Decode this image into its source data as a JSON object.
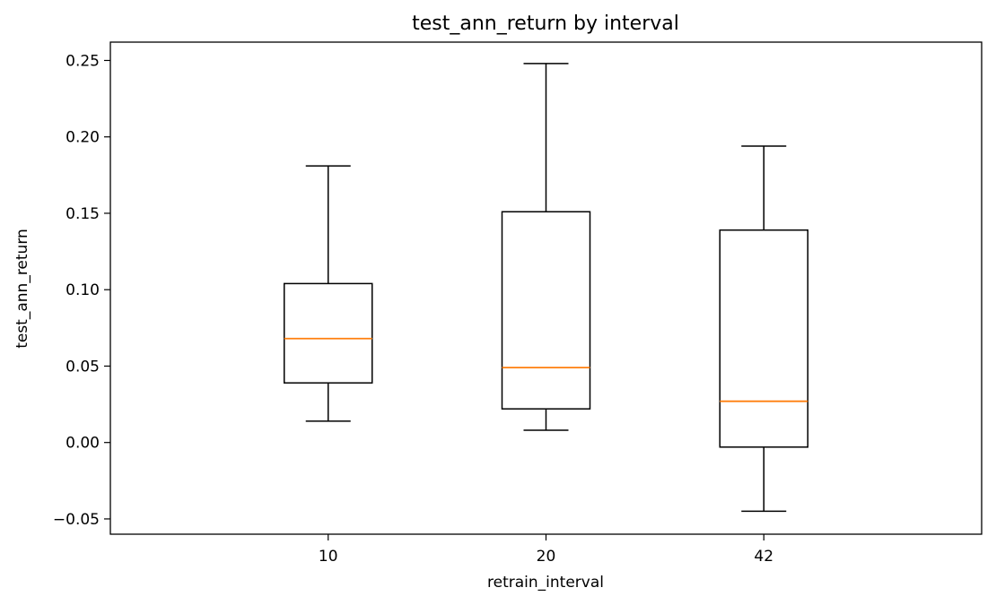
{
  "chart_data": {
    "type": "box",
    "title": "test_ann_return by interval",
    "xlabel": "retrain_interval",
    "ylabel": "test_ann_return",
    "categories": [
      "10",
      "20",
      "42"
    ],
    "boxes": [
      {
        "category": "10",
        "whisker_low": 0.014,
        "q1": 0.039,
        "median": 0.068,
        "q3": 0.104,
        "whisker_high": 0.181
      },
      {
        "category": "20",
        "whisker_low": 0.008,
        "q1": 0.022,
        "median": 0.049,
        "q3": 0.151,
        "whisker_high": 0.248
      },
      {
        "category": "42",
        "whisker_low": -0.045,
        "q1": -0.003,
        "median": 0.027,
        "q3": 0.139,
        "whisker_high": 0.194
      }
    ],
    "y_ticks": [
      "−0.05",
      "0.00",
      "0.05",
      "0.10",
      "0.15",
      "0.20",
      "0.25"
    ],
    "y_tick_values": [
      -0.05,
      0.0,
      0.05,
      0.1,
      0.15,
      0.2,
      0.25
    ],
    "ylim": [
      -0.06,
      0.262
    ],
    "grid": false,
    "colors": {
      "box": "#000000",
      "median": "#ff7f0e",
      "background": "#ffffff"
    }
  }
}
